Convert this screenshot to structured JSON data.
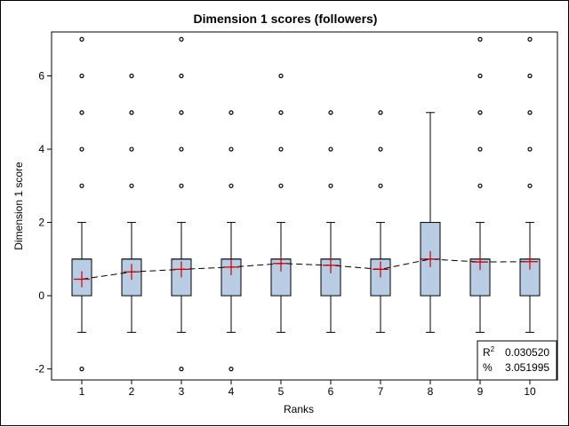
{
  "chart_data": {
    "type": "box",
    "title": "Dimension 1 scores (followers)",
    "xlabel": "Ranks",
    "ylabel": "Dimension 1 score",
    "ylim": [
      -2.3,
      7.2
    ],
    "yticks": [
      -2,
      0,
      2,
      4,
      6
    ],
    "categories": [
      "1",
      "2",
      "3",
      "4",
      "5",
      "6",
      "7",
      "8",
      "9",
      "10"
    ],
    "boxes": [
      {
        "q1": 0,
        "median": 1,
        "q3": 1,
        "whisker_low": -1,
        "whisker_high": 2,
        "mean": 0.45,
        "outliers": [
          -2,
          3,
          4,
          5,
          6,
          7
        ]
      },
      {
        "q1": 0,
        "median": 1,
        "q3": 1,
        "whisker_low": -1,
        "whisker_high": 2,
        "mean": 0.65,
        "outliers": [
          3,
          4,
          5,
          6
        ]
      },
      {
        "q1": 0,
        "median": 1,
        "q3": 1,
        "whisker_low": -1,
        "whisker_high": 2,
        "mean": 0.72,
        "outliers": [
          -2,
          3,
          4,
          5,
          6,
          7
        ]
      },
      {
        "q1": 0,
        "median": 1,
        "q3": 1,
        "whisker_low": -1,
        "whisker_high": 2,
        "mean": 0.78,
        "outliers": [
          -2,
          3,
          4,
          5
        ]
      },
      {
        "q1": 0,
        "median": 1,
        "q3": 1,
        "whisker_low": -1,
        "whisker_high": 2,
        "mean": 0.88,
        "outliers": [
          3,
          4,
          5,
          6
        ]
      },
      {
        "q1": 0,
        "median": 1,
        "q3": 1,
        "whisker_low": -1,
        "whisker_high": 2,
        "mean": 0.83,
        "outliers": [
          3,
          4,
          5
        ]
      },
      {
        "q1": 0,
        "median": 1,
        "q3": 1,
        "whisker_low": -1,
        "whisker_high": 2,
        "mean": 0.72,
        "outliers": [
          3,
          4,
          5
        ]
      },
      {
        "q1": 0,
        "median": 1,
        "q3": 2,
        "whisker_low": -1,
        "whisker_high": 5,
        "mean": 1.0,
        "outliers": []
      },
      {
        "q1": 0,
        "median": 1,
        "q3": 1,
        "whisker_low": -1,
        "whisker_high": 2,
        "mean": 0.92,
        "outliers": [
          3,
          4,
          5,
          6,
          7
        ]
      },
      {
        "q1": 0,
        "median": 1,
        "q3": 1,
        "whisker_low": -1,
        "whisker_high": 2,
        "mean": 0.93,
        "outliers": [
          3,
          4,
          5,
          6,
          7
        ]
      }
    ],
    "mean_line": true,
    "stats": {
      "r2_label": "R",
      "r2_sup": "2",
      "r2_value": "0.030520",
      "pct_label": "%",
      "pct_value": "3.051995"
    },
    "colors": {
      "box_fill": "#b8cce4",
      "box_stroke": "#000000",
      "mean_marker": "#cc0000",
      "mean_line": "#000000"
    },
    "grid": false,
    "legend": "none"
  }
}
